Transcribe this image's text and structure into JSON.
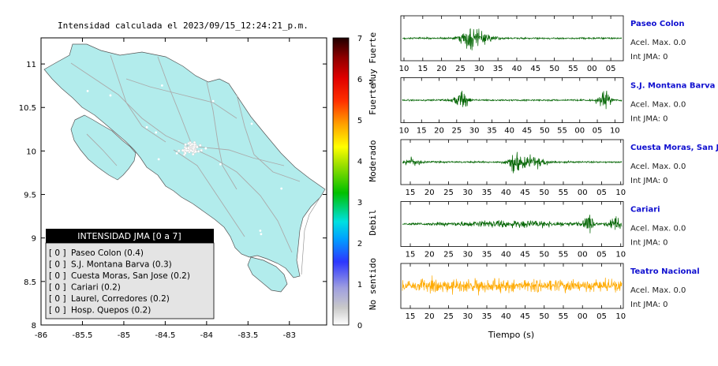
{
  "map": {
    "title": "Intensidad calculada el 2023/09/15_12:24:21_p.m.",
    "x_ticks": [
      "-86",
      "-85.5",
      "-85",
      "-84.5",
      "-84",
      "-83.5",
      "-83"
    ],
    "y_ticks": [
      "11",
      "10.5",
      "10",
      "9.5",
      "9",
      "8.5",
      "8"
    ],
    "land_color": "#b2ecec",
    "legend": {
      "title": "INTENSIDAD JMA [0 a 7]",
      "entries": [
        {
          "level": "[ 0 ]",
          "label": "Paseo Colon (0.4)"
        },
        {
          "level": "[ 0 ]",
          "label": "S.J. Montana Barva (0.3)"
        },
        {
          "level": "[ 0 ]",
          "label": "Cuesta Moras, San Jose (0.2)"
        },
        {
          "level": "[ 0 ]",
          "label": "Cariari (0.2)"
        },
        {
          "level": "[ 0 ]",
          "label": "Laurel, Corredores (0.2)"
        },
        {
          "level": "[ 0 ]",
          "label": "Hosp. Quepos (0.2)"
        }
      ]
    }
  },
  "colorbar": {
    "ticks": [
      "7",
      "6",
      "5",
      "4",
      "3",
      "2",
      "1",
      "0"
    ],
    "category_labels": [
      "Muy Fuerte",
      "Fuerte",
      "Moderado",
      "Debil",
      "No sentido"
    ]
  },
  "waveforms": {
    "xlabel": "Tiempo (s)",
    "accel_label": "Acel. Max. 0.0",
    "jma_label": "Int JMA: 0",
    "panels": [
      {
        "name": "Paseo Colon",
        "color": "#006400",
        "ticks": [
          "10",
          "15",
          "20",
          "25",
          "30",
          "35",
          "40",
          "45",
          "50",
          "55",
          "00",
          "05"
        ]
      },
      {
        "name": "S.J. Montana Barva",
        "color": "#006400",
        "ticks": [
          "10",
          "15",
          "20",
          "25",
          "30",
          "35",
          "40",
          "45",
          "50",
          "55",
          "00",
          "05",
          "10"
        ]
      },
      {
        "name": "Cuesta Moras, San Jose",
        "color": "#006400",
        "ticks": [
          "15",
          "20",
          "25",
          "30",
          "35",
          "40",
          "45",
          "50",
          "55",
          "00",
          "05",
          "10"
        ]
      },
      {
        "name": "Cariari",
        "color": "#006400",
        "ticks": [
          "15",
          "20",
          "25",
          "30",
          "35",
          "40",
          "45",
          "50",
          "55",
          "00",
          "05",
          "10"
        ]
      },
      {
        "name": "Teatro Nacional",
        "color": "#ffaa00",
        "ticks": [
          "15",
          "20",
          "25",
          "30",
          "35",
          "40",
          "45",
          "50",
          "55",
          "00",
          "05",
          "10"
        ]
      }
    ]
  },
  "chart_data": [
    {
      "type": "scatter",
      "title": "Intensidad calculada el 2023/09/15_12:24:21_p.m.",
      "xlim": [
        -86,
        -82.55
      ],
      "ylim": [
        8,
        11.3
      ],
      "x_ticks": [
        -86,
        -85.5,
        -85,
        -84.5,
        -84,
        -83.5,
        -83
      ],
      "y_ticks": [
        8,
        8.5,
        9,
        9.5,
        10,
        10.5,
        11
      ],
      "colorbar_range": [
        0,
        7
      ]
    },
    {
      "type": "line",
      "xlabel": "Tiempo (s)",
      "series": [
        {
          "name": "Paseo Colon",
          "peak_acceleration": 0.0,
          "jma_intensity": 0
        },
        {
          "name": "S.J. Montana Barva",
          "peak_acceleration": 0.0,
          "jma_intensity": 0
        },
        {
          "name": "Cuesta Moras, San Jose",
          "peak_acceleration": 0.0,
          "jma_intensity": 0
        },
        {
          "name": "Cariari",
          "peak_acceleration": 0.0,
          "jma_intensity": 0
        },
        {
          "name": "Teatro Nacional",
          "peak_acceleration": 0.0,
          "jma_intensity": 0
        }
      ]
    }
  ]
}
